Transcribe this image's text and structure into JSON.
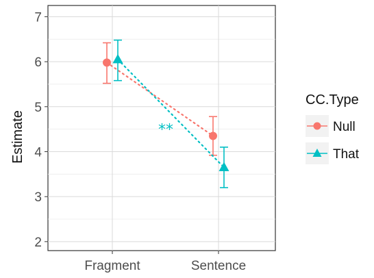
{
  "chart_data": {
    "type": "line",
    "categories": [
      "Fragment",
      "Sentence"
    ],
    "ylabel": "Estimate",
    "xlabel": "",
    "ylim": [
      1.8,
      7.25
    ],
    "yticks": [
      2,
      3,
      4,
      5,
      6,
      7
    ],
    "grid": true,
    "legend": {
      "title": "CC.Type",
      "placement": "right"
    },
    "series": [
      {
        "name": "Null",
        "color": "#f8766d",
        "marker": "circle",
        "values": [
          5.98,
          4.35
        ],
        "ci_low": [
          5.52,
          3.92
        ],
        "ci_high": [
          6.42,
          4.78
        ]
      },
      {
        "name": "That",
        "color": "#00bfc4",
        "marker": "triangle",
        "values": [
          6.05,
          3.65
        ],
        "ci_low": [
          5.58,
          3.2
        ],
        "ci_high": [
          6.48,
          4.1
        ]
      }
    ],
    "annotations": [
      {
        "text": "**",
        "color": "#00bfc4",
        "x_between": [
          "Fragment",
          "Sentence"
        ],
        "y": 4.55
      }
    ]
  }
}
